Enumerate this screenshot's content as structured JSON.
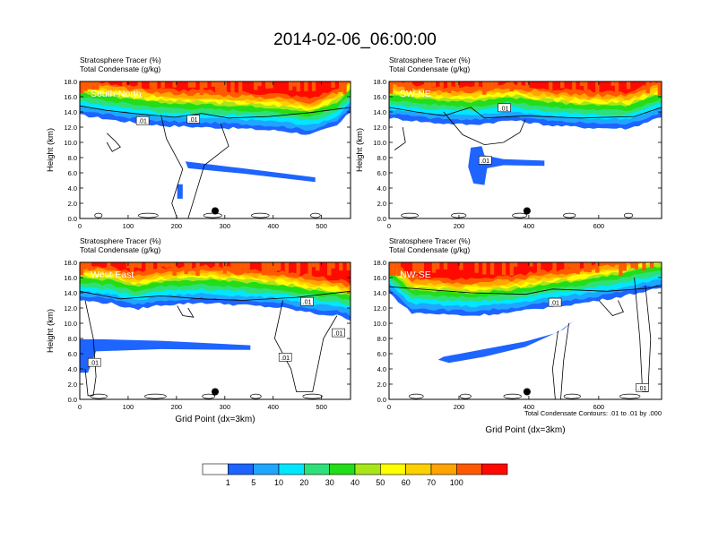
{
  "title": "2014-02-06_06:00:00",
  "colors": {
    "fill_levels": [
      "#ffffff",
      "#1e64ff",
      "#1fa6ff",
      "#00e7ff",
      "#2ee07a",
      "#22dd18",
      "#a8e61a",
      "#ffff00",
      "#ffd000",
      "#ffa400",
      "#ff5a00",
      "#ff0a00"
    ],
    "marker": "#000000",
    "contour": "#000000"
  },
  "labelbar": {
    "labels": [
      "1",
      "5",
      "10",
      "20",
      "30",
      "40",
      "50",
      "60",
      "70",
      "100"
    ]
  },
  "footnote": "Total Condensate Contours: .01 to .01 by .000",
  "chart_data": [
    {
      "type": "contour",
      "label": "South-North",
      "header_lines": [
        "Stratosphere Tracer   (%)",
        "Total Condensate   (g/kg)"
      ],
      "ylabel": "Height (km)",
      "xlabel": "",
      "xlim": [
        0,
        560
      ],
      "ylim": [
        0,
        18
      ],
      "xticks": [
        "0",
        "100",
        "200",
        "300",
        "400",
        "500"
      ],
      "yticks": [
        "0.0",
        "2.0",
        "4.0",
        "6.0",
        "8.0",
        "10.0",
        "12.0",
        "14.0",
        "16.0",
        "18.0"
      ],
      "marker": [
        280,
        1.0
      ],
      "contour_labels": [
        {
          "text": ".01",
          "x": 130,
          "y": 12.8
        },
        {
          "text": ".01",
          "x": 235,
          "y": 13.0
        }
      ]
    },
    {
      "type": "contour",
      "label": "SW-NE",
      "header_lines": [
        "Stratosphere Tracer   (%)",
        "Total Condensate   (g/kg)"
      ],
      "ylabel": "Height (km)",
      "xlabel": "",
      "xlim": [
        0,
        780
      ],
      "ylim": [
        0,
        18
      ],
      "xticks": [
        "0",
        "200",
        "400",
        "600"
      ],
      "yticks": [
        "0.0",
        "2.0",
        "4.0",
        "6.0",
        "8.0",
        "10.0",
        "12.0",
        "14.0",
        "16.0",
        "18.0"
      ],
      "marker": [
        395,
        1.0
      ],
      "contour_labels": [
        {
          "text": ".01",
          "x": 330,
          "y": 14.5
        },
        {
          "text": ".01",
          "x": 275,
          "y": 7.6
        }
      ]
    },
    {
      "type": "contour",
      "label": "West-East",
      "header_lines": [
        "Stratosphere Tracer   (%)",
        "Total Condensate   (g/kg)"
      ],
      "ylabel": "Height (km)",
      "xlabel": "Grid Point (dx=3km)",
      "xlim": [
        0,
        560
      ],
      "ylim": [
        0,
        18
      ],
      "xticks": [
        "0",
        "100",
        "200",
        "300",
        "400",
        "500"
      ],
      "yticks": [
        "0.0",
        "2.0",
        "4.0",
        "6.0",
        "8.0",
        "10.0",
        "12.0",
        "14.0",
        "16.0",
        "18.0"
      ],
      "marker": [
        280,
        1.0
      ],
      "contour_labels": [
        {
          "text": ".01",
          "x": 470,
          "y": 12.8
        },
        {
          "text": ".01",
          "x": 535,
          "y": 8.7
        },
        {
          "text": ".01",
          "x": 425,
          "y": 5.5
        },
        {
          "text": ".01",
          "x": 30,
          "y": 4.8
        }
      ]
    },
    {
      "type": "contour",
      "label": "NW-SE",
      "header_lines": [
        "Stratosphere Tracer   (%)",
        "Total Condensate   (g/kg)"
      ],
      "ylabel": "",
      "xlabel": "Grid Point (dx=3km)",
      "xlim": [
        0,
        780
      ],
      "ylim": [
        0,
        18
      ],
      "xticks": [
        "0",
        "200",
        "400",
        "600"
      ],
      "yticks": [
        "0.0",
        "2.0",
        "4.0",
        "6.0",
        "8.0",
        "10.0",
        "12.0",
        "14.0",
        "16.0",
        "18.0"
      ],
      "marker": [
        395,
        1.0
      ],
      "contour_labels": [
        {
          "text": ".01",
          "x": 475,
          "y": 12.7
        },
        {
          "text": ".01",
          "x": 725,
          "y": 1.5
        }
      ]
    }
  ]
}
